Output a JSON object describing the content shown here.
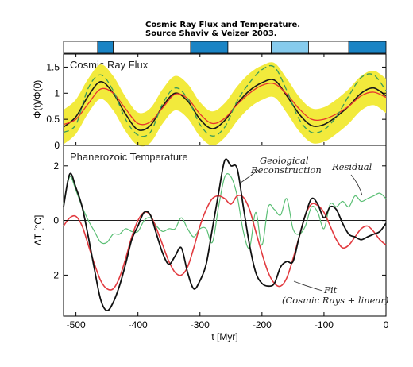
{
  "header": {
    "title_line1": "Cosmic Ray Flux and Temperature.",
    "title_line2": "Source Shaviv & Veizer 2003."
  },
  "colors": {
    "band": "#f2ea3c",
    "crf_black": "#1a1a1a",
    "crf_red": "#e8332e",
    "crf_green": "#3a9a5a",
    "temp_black": "#111111",
    "temp_red": "#e23b40",
    "temp_green": "#5bbf75",
    "strip_dark": "#1a84c5",
    "strip_light": "#86cbed"
  },
  "chart_data": [
    {
      "type": "line",
      "title": "Cosmic Ray Flux",
      "ylabel": "Φ(t)/Φ(0)",
      "xlim": [
        -520,
        0
      ],
      "ylim": [
        0,
        1.75
      ],
      "yticks": [
        0,
        0.5,
        1,
        1.5
      ],
      "ytick_labels": [
        "0",
        "0.5",
        "1",
        "1.5"
      ],
      "grid": false,
      "strip": [
        {
          "start": -520,
          "end": -465,
          "shade": "none"
        },
        {
          "start": -465,
          "end": -440,
          "shade": "dark"
        },
        {
          "start": -440,
          "end": -315,
          "shade": "none"
        },
        {
          "start": -315,
          "end": -255,
          "shade": "dark"
        },
        {
          "start": -255,
          "end": -185,
          "shade": "none"
        },
        {
          "start": -185,
          "end": -125,
          "shade": "light"
        },
        {
          "start": -125,
          "end": -60,
          "shade": "none"
        },
        {
          "start": -60,
          "end": 0,
          "shade": "dark"
        }
      ],
      "x": [
        -520,
        -500,
        -480,
        -460,
        -440,
        -420,
        -400,
        -380,
        -360,
        -340,
        -320,
        -300,
        -280,
        -260,
        -240,
        -220,
        -200,
        -180,
        -160,
        -140,
        -120,
        -100,
        -80,
        -60,
        -40,
        -20,
        0
      ],
      "series": [
        {
          "style": "black-solid",
          "values": [
            0.35,
            0.55,
            0.95,
            1.22,
            1.0,
            0.6,
            0.3,
            0.38,
            0.75,
            1.0,
            0.85,
            0.5,
            0.32,
            0.48,
            0.8,
            1.05,
            1.2,
            1.25,
            0.95,
            0.6,
            0.38,
            0.4,
            0.55,
            0.75,
            1.0,
            1.1,
            0.95
          ]
        },
        {
          "style": "red-solid",
          "values": [
            0.4,
            0.5,
            0.8,
            1.08,
            1.0,
            0.7,
            0.42,
            0.45,
            0.72,
            0.98,
            0.9,
            0.6,
            0.42,
            0.52,
            0.78,
            1.0,
            1.15,
            1.18,
            0.98,
            0.7,
            0.5,
            0.5,
            0.6,
            0.75,
            0.95,
            1.02,
            0.92
          ]
        },
        {
          "style": "green-dashed",
          "values": [
            0.25,
            0.4,
            1.1,
            1.35,
            1.05,
            0.5,
            0.2,
            0.25,
            0.8,
            1.1,
            0.9,
            0.4,
            0.18,
            0.35,
            0.85,
            1.2,
            1.45,
            1.5,
            1.05,
            0.5,
            0.25,
            0.3,
            0.55,
            0.95,
            1.3,
            1.35,
            1.05
          ]
        }
      ],
      "band": {
        "half_width": 0.33
      }
    },
    {
      "type": "line",
      "title": "Phanerozoic Temperature",
      "xlabel": "t [Myr]",
      "ylabel": "ΔT [°C]",
      "xlim": [
        -520,
        0
      ],
      "ylim": [
        -3.5,
        2.75
      ],
      "xticks": [
        -500,
        -400,
        -300,
        -200,
        -100,
        0
      ],
      "xtick_labels": [
        "-500",
        "-400",
        "-300",
        "-200",
        "-100",
        "0"
      ],
      "yticks": [
        -2,
        0,
        2
      ],
      "ytick_labels": [
        "-2",
        "0",
        "2"
      ],
      "zero_line": true,
      "grid": false,
      "annotations": {
        "geological_line1": "Geological",
        "geological_line2": "Reconstruction",
        "residual": "Residual",
        "fit_line1": "Fit",
        "fit_line2": "(Cosmic Rays + linear)"
      },
      "x": [
        -520,
        -510,
        -500,
        -490,
        -480,
        -470,
        -460,
        -450,
        -440,
        -430,
        -420,
        -410,
        -400,
        -390,
        -380,
        -370,
        -360,
        -350,
        -340,
        -330,
        -320,
        -310,
        -300,
        -290,
        -280,
        -270,
        -260,
        -250,
        -240,
        -230,
        -220,
        -210,
        -200,
        -190,
        -180,
        -170,
        -160,
        -150,
        -140,
        -130,
        -120,
        -110,
        -100,
        -90,
        -80,
        -70,
        -60,
        -50,
        -40,
        -30,
        -20,
        -10,
        0
      ],
      "series": [
        {
          "name": "Geological Reconstruction",
          "style": "black",
          "values": [
            0.5,
            1.7,
            1.2,
            0.5,
            -0.6,
            -1.8,
            -2.9,
            -3.3,
            -3.0,
            -2.4,
            -1.6,
            -0.7,
            -0.2,
            0.3,
            0.2,
            -0.5,
            -1.2,
            -1.6,
            -1.3,
            -1.0,
            -1.9,
            -2.5,
            -2.2,
            -1.6,
            -0.3,
            1.0,
            2.2,
            2.0,
            1.9,
            0.5,
            -0.9,
            -1.9,
            -2.3,
            -2.4,
            -2.3,
            -1.7,
            -1.5,
            -1.5,
            -0.6,
            0.2,
            0.8,
            0.6,
            0.1,
            0.5,
            0.4,
            -0.1,
            -0.5,
            -0.6,
            -0.7,
            -0.6,
            -0.5,
            -0.4,
            -0.1
          ]
        },
        {
          "name": "Fit",
          "style": "red",
          "values": [
            -0.2,
            0.1,
            0.15,
            -0.2,
            -0.9,
            -1.6,
            -2.2,
            -2.5,
            -2.5,
            -2.1,
            -1.4,
            -0.6,
            0.0,
            0.3,
            0.2,
            -0.3,
            -0.9,
            -1.5,
            -1.9,
            -2.0,
            -1.7,
            -1.0,
            -0.2,
            0.4,
            0.8,
            0.9,
            0.8,
            0.6,
            0.9,
            0.85,
            0.4,
            -0.4,
            -1.2,
            -1.9,
            -2.3,
            -2.4,
            -2.1,
            -1.4,
            -0.6,
            0.2,
            0.6,
            0.55,
            0.3,
            -0.2,
            -0.7,
            -1.0,
            -0.9,
            -0.6,
            -0.3,
            -0.2,
            -0.4,
            -0.7,
            -0.9
          ]
        },
        {
          "name": "Residual",
          "style": "green",
          "values": [
            0.6,
            1.6,
            1.1,
            0.5,
            0.0,
            -0.4,
            -0.8,
            -0.8,
            -0.5,
            -0.5,
            -0.3,
            -0.4,
            -0.4,
            0.0,
            0.1,
            -0.2,
            -0.4,
            -0.3,
            -0.3,
            0.1,
            -0.3,
            -0.6,
            -0.3,
            -0.3,
            -0.8,
            0.5,
            1.6,
            1.6,
            0.9,
            -0.4,
            -1.0,
            0.3,
            -0.9,
            0.5,
            0.4,
            0.2,
            0.8,
            -0.3,
            -0.5,
            -0.2,
            0.5,
            0.3,
            -0.3,
            0.6,
            0.5,
            0.7,
            0.5,
            0.9,
            0.7,
            0.8,
            0.9,
            1.0,
            0.8
          ]
        }
      ]
    }
  ]
}
